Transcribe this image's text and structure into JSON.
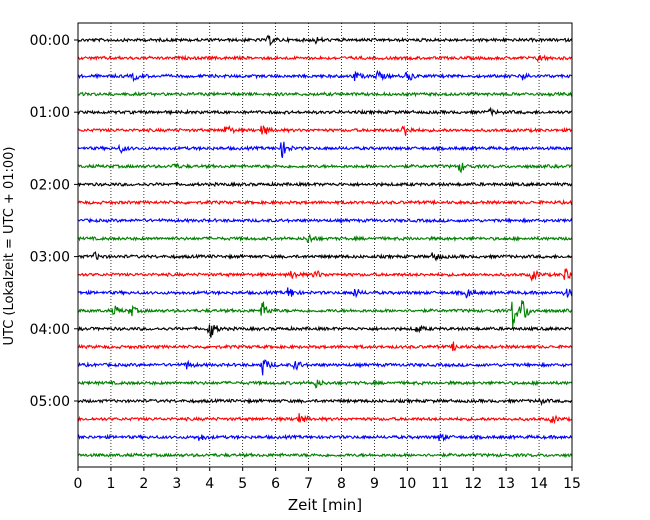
{
  "chart_data": {
    "type": "line",
    "description": "helicorder",
    "xlabel": "Zeit  [min]",
    "ylabel": "UTC (Lokalzeit = UTC + 01:00)",
    "xlim": [
      0,
      15
    ],
    "x_ticks": [
      "0",
      "1",
      "2",
      "3",
      "4",
      "5",
      "6",
      "7",
      "8",
      "9",
      "10",
      "11",
      "12",
      "13",
      "14",
      "15"
    ],
    "row_interval_minutes": 15,
    "hour_labels": [
      "00:00",
      "01:00",
      "02:00",
      "03:00",
      "04:00",
      "05:00"
    ],
    "trace_colors": [
      "#000000",
      "#ff0000",
      "#0000ff",
      "#008000"
    ],
    "grid": {
      "vertical": true,
      "style": "dotted"
    },
    "traces": [
      {
        "row_label": "00:00",
        "color": "#000000",
        "events": [
          {
            "t": 5.8,
            "amp": 5
          },
          {
            "t": 7.2,
            "amp": 3
          }
        ]
      },
      {
        "row_label": "00:15",
        "color": "#ff0000",
        "events": [
          {
            "t": 14.0,
            "amp": 4
          }
        ]
      },
      {
        "row_label": "00:30",
        "color": "#0000ff",
        "events": [
          {
            "t": 1.7,
            "amp": 4
          },
          {
            "t": 8.4,
            "amp": 5
          },
          {
            "t": 9.1,
            "amp": 6
          },
          {
            "t": 10.0,
            "amp": 6
          },
          {
            "t": 13.5,
            "amp": 4
          }
        ]
      },
      {
        "row_label": "00:45",
        "color": "#008000",
        "events": []
      },
      {
        "row_label": "01:00",
        "color": "#000000",
        "events": [
          {
            "t": 12.5,
            "amp": 3
          }
        ]
      },
      {
        "row_label": "01:15",
        "color": "#ff0000",
        "events": [
          {
            "t": 4.5,
            "amp": 6
          },
          {
            "t": 5.6,
            "amp": 7
          },
          {
            "t": 9.9,
            "amp": 8
          }
        ]
      },
      {
        "row_label": "01:30",
        "color": "#0000ff",
        "events": [
          {
            "t": 1.3,
            "amp": 4
          },
          {
            "t": 6.2,
            "amp": 9
          }
        ]
      },
      {
        "row_label": "01:45",
        "color": "#008000",
        "events": [
          {
            "t": 2.9,
            "amp": 3
          },
          {
            "t": 11.6,
            "amp": 6
          }
        ]
      },
      {
        "row_label": "02:00",
        "color": "#000000",
        "events": []
      },
      {
        "row_label": "02:15",
        "color": "#ff0000",
        "events": []
      },
      {
        "row_label": "02:30",
        "color": "#0000ff",
        "events": []
      },
      {
        "row_label": "02:45",
        "color": "#008000",
        "events": [
          {
            "t": 7.0,
            "amp": 5
          }
        ]
      },
      {
        "row_label": "03:00",
        "color": "#000000",
        "events": [
          {
            "t": 0.5,
            "amp": 4
          },
          {
            "t": 10.8,
            "amp": 6
          }
        ]
      },
      {
        "row_label": "03:15",
        "color": "#ff0000",
        "events": [
          {
            "t": 6.5,
            "amp": 5
          },
          {
            "t": 7.2,
            "amp": 5
          },
          {
            "t": 13.8,
            "amp": 6
          },
          {
            "t": 14.8,
            "amp": 9
          }
        ]
      },
      {
        "row_label": "03:30",
        "color": "#0000ff",
        "events": [
          {
            "t": 6.4,
            "amp": 7
          },
          {
            "t": 8.4,
            "amp": 5
          },
          {
            "t": 11.8,
            "amp": 5
          },
          {
            "t": 14.8,
            "amp": 6
          }
        ]
      },
      {
        "row_label": "03:45",
        "color": "#008000",
        "events": [
          {
            "t": 1.1,
            "amp": 5
          },
          {
            "t": 1.6,
            "amp": 6
          },
          {
            "t": 5.6,
            "amp": 10
          },
          {
            "t": 13.2,
            "amp": 18
          },
          {
            "t": 13.5,
            "amp": 13
          }
        ]
      },
      {
        "row_label": "04:00",
        "color": "#000000",
        "events": [
          {
            "t": 4.0,
            "amp": 12
          },
          {
            "t": 10.3,
            "amp": 4
          }
        ]
      },
      {
        "row_label": "04:15",
        "color": "#ff0000",
        "events": [
          {
            "t": 11.4,
            "amp": 4
          }
        ]
      },
      {
        "row_label": "04:30",
        "color": "#0000ff",
        "events": [
          {
            "t": 3.3,
            "amp": 4
          },
          {
            "t": 5.6,
            "amp": 10
          },
          {
            "t": 6.6,
            "amp": 6
          }
        ]
      },
      {
        "row_label": "04:45",
        "color": "#008000",
        "events": [
          {
            "t": 7.2,
            "amp": 5
          }
        ]
      },
      {
        "row_label": "05:00",
        "color": "#000000",
        "events": [
          {
            "t": 14.0,
            "amp": 3
          }
        ]
      },
      {
        "row_label": "05:15",
        "color": "#ff0000",
        "events": [
          {
            "t": 6.7,
            "amp": 6
          },
          {
            "t": 14.4,
            "amp": 4
          }
        ]
      },
      {
        "row_label": "05:30",
        "color": "#0000ff",
        "events": [
          {
            "t": 3.7,
            "amp": 4
          },
          {
            "t": 11.0,
            "amp": 5
          }
        ]
      },
      {
        "row_label": "05:45",
        "color": "#008000",
        "events": []
      }
    ]
  }
}
